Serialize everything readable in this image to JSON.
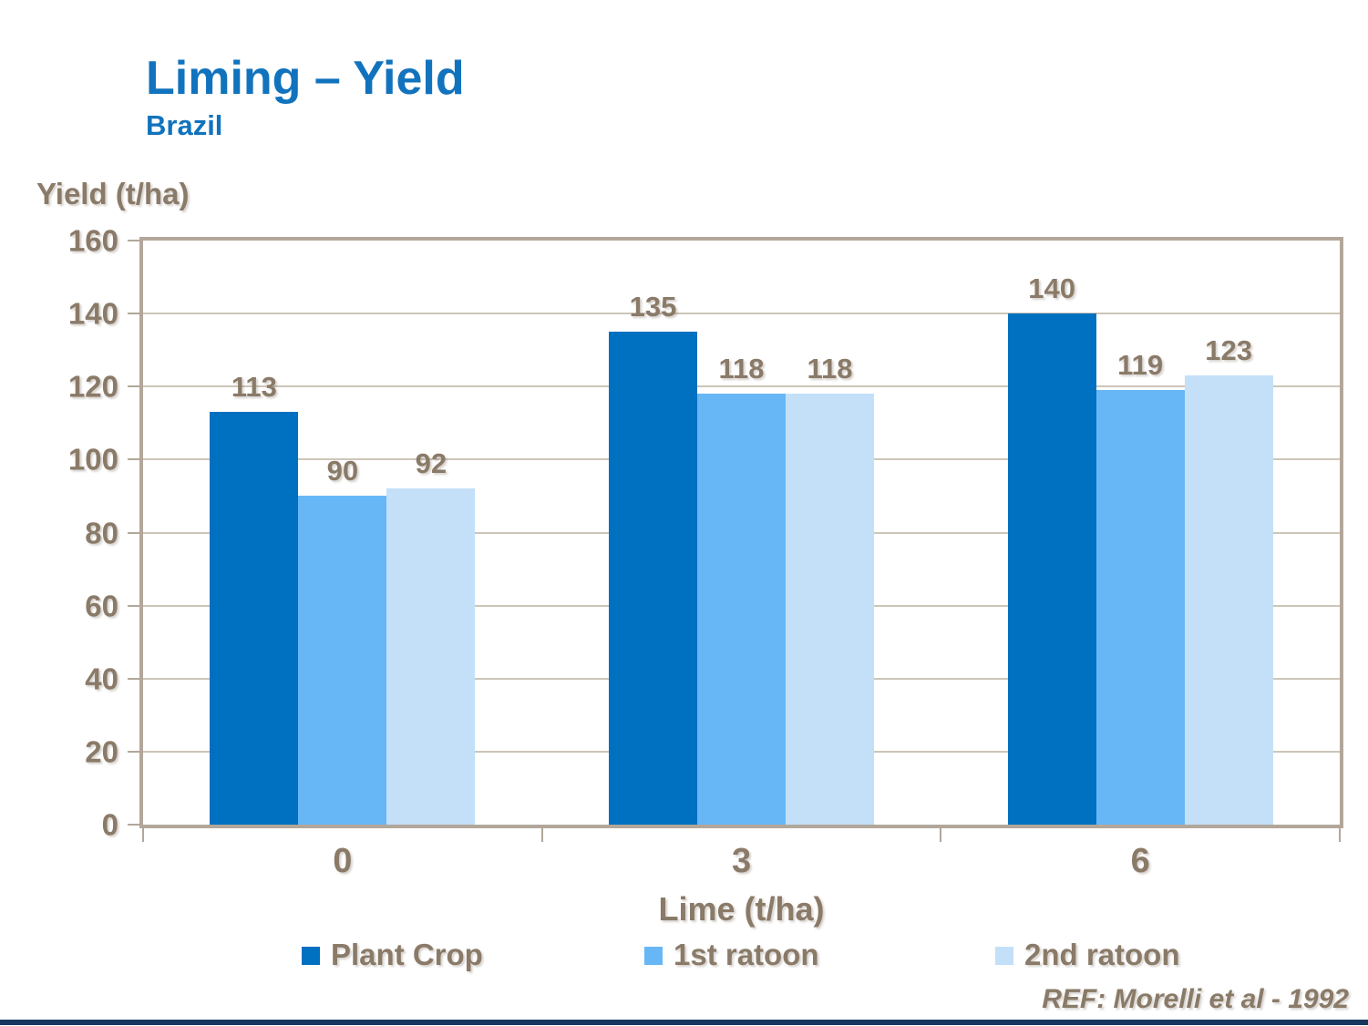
{
  "slide": {
    "title": "Liming – Yield",
    "subtitle": "Brazil",
    "reference": "REF: Morelli et al - 1992"
  },
  "chart_data": {
    "type": "bar",
    "title": "Liming – Yield",
    "subtitle": "Brazil",
    "categories": [
      "0",
      "3",
      "6"
    ],
    "series": [
      {
        "name": "Plant Crop",
        "color": "#0070C0",
        "values": [
          113,
          135,
          140
        ]
      },
      {
        "name": "1st ratoon",
        "color": "#67B7F7",
        "values": [
          90,
          118,
          119
        ]
      },
      {
        "name": "2nd ratoon",
        "color": "#C3E0F8",
        "values": [
          92,
          118,
          123
        ]
      }
    ],
    "xlabel": "Lime (t/ha)",
    "ylabel": "Yield (t/ha)",
    "ylim": [
      0,
      160
    ],
    "ytick_step": 20,
    "grid": true,
    "legend_position": "bottom",
    "data_labels": true
  },
  "colors": {
    "title_blue": "#1173BD",
    "chart_text": "#8A7A68",
    "axis_frame": "#B2A79A",
    "gridline": "#CDC5B8",
    "bottom_accent": "#17375E"
  }
}
